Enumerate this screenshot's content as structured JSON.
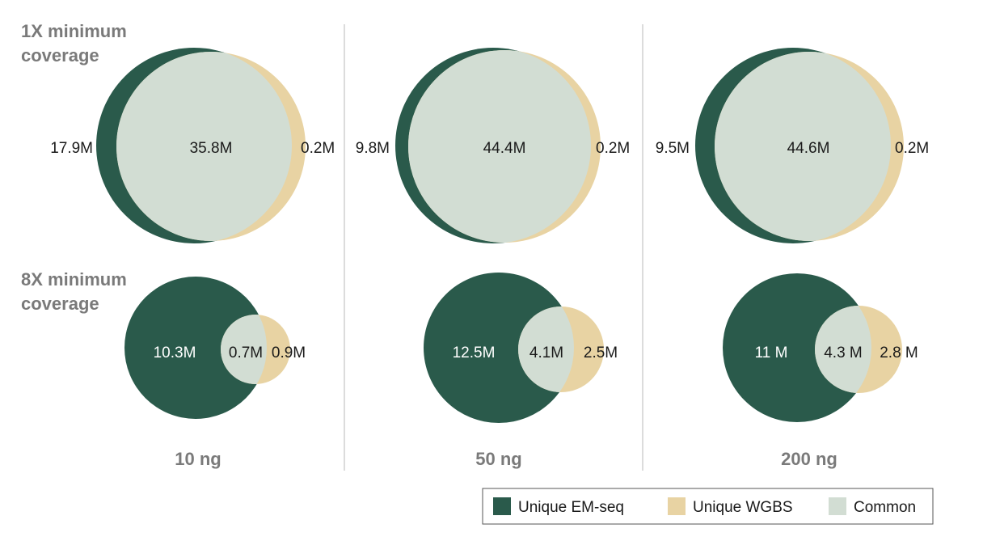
{
  "colors": {
    "unique_em_seq": "#2a5a4b",
    "unique_wgbs": "#e8d3a3",
    "common": "#d2ddd3",
    "divider": "#b9b9b9",
    "label_gray": "#7a7a7a"
  },
  "row_labels": {
    "row1": [
      "1X minimum",
      "coverage"
    ],
    "row2": [
      "8X minimum",
      "coverage"
    ]
  },
  "columns": [
    "10 ng",
    "50 ng",
    "200 ng"
  ],
  "venn": {
    "row1": [
      {
        "em_only": "17.9M",
        "common": "35.8M",
        "wgbs_only": "0.2M"
      },
      {
        "em_only": "9.8M",
        "common": "44.4M",
        "wgbs_only": "0.2M"
      },
      {
        "em_only": "9.5M",
        "common": "44.6M",
        "wgbs_only": "0.2M"
      }
    ],
    "row2": [
      {
        "em_only": "10.3M",
        "common": "0.7M",
        "wgbs_only": "0.9M"
      },
      {
        "em_only": "12.5M",
        "common": "4.1M",
        "wgbs_only": "2.5M"
      },
      {
        "em_only": "11 M",
        "common": "4.3 M",
        "wgbs_only": "2.8 M"
      }
    ]
  },
  "legend": [
    {
      "label": "Unique EM-seq",
      "color": "#2a5a4b"
    },
    {
      "label": "Unique WGBS",
      "color": "#e8d3a3"
    },
    {
      "label": "Common",
      "color": "#d2ddd3"
    }
  ]
}
